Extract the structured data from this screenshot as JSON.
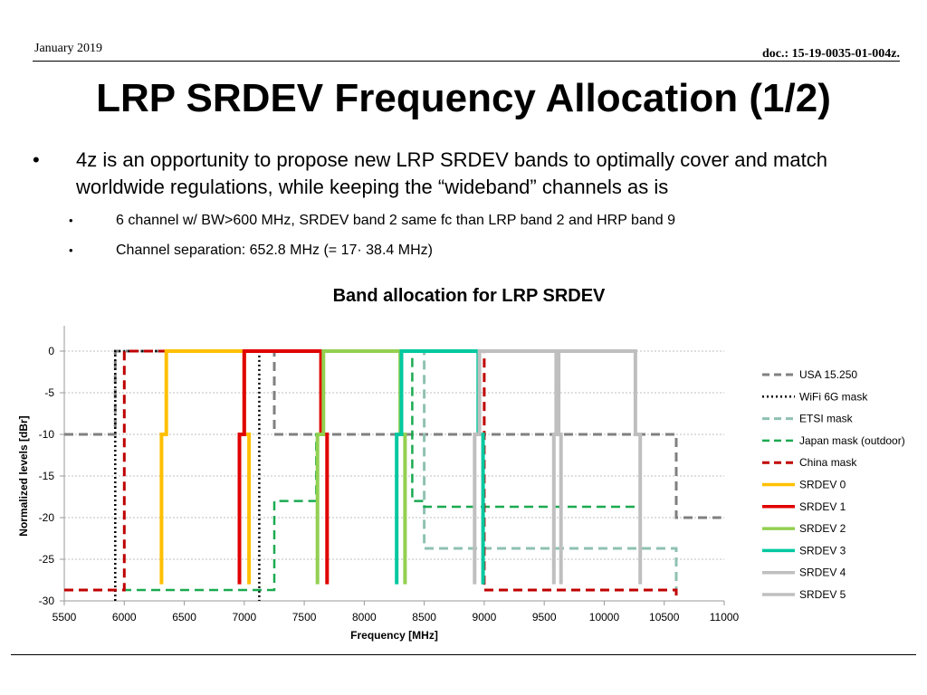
{
  "header": {
    "date": "January 2019",
    "doc_prefix": "doc.: ",
    "doc_number": "15-19-0035-01-004z",
    "doc_suffix": "."
  },
  "slide": {
    "title": "LRP SRDEV Frequency Allocation (1/2)",
    "bullet": "4z is an opportunity to propose new LRP SRDEV bands to optimally cover and match worldwide regulations, while keeping the “wideband” channels as is",
    "bullet_marker": "•",
    "sub_bullets": [
      "6 channel w/ BW>600 MHz, SRDEV band 2 same fc than LRP band 2 and HRP band 9",
      "Channel separation: 652.8 MHz (= 17· 38.4 MHz)"
    ]
  },
  "chart_data": {
    "type": "line",
    "title": "Band allocation for LRP SRDEV",
    "xlabel": "Frequency [MHz]",
    "ylabel": "Normalized levels [dBr]",
    "xlim": [
      5500,
      11000
    ],
    "ylim": [
      -30,
      0
    ],
    "xticks": [
      5500,
      6000,
      6500,
      7000,
      7500,
      8000,
      8500,
      9000,
      9500,
      10000,
      10500,
      11000
    ],
    "yticks": [
      0,
      -5,
      -10,
      -15,
      -20,
      -25,
      -30
    ],
    "grid": "horizontal dotted",
    "legend_position": "right",
    "series": [
      {
        "name": "USA 15.250",
        "color": "#808080",
        "style": "dashed",
        "width": 3,
        "points": [
          [
            5500,
            -10
          ],
          [
            5925,
            -10
          ],
          [
            5925,
            0
          ],
          [
            7250,
            0
          ],
          [
            7250,
            -10
          ],
          [
            10600,
            -10
          ],
          [
            10600,
            -20
          ],
          [
            10975,
            -20
          ]
        ]
      },
      {
        "name": "WiFi 6G mask",
        "color": "#000000",
        "style": "dotted",
        "width": 2.5,
        "points": [
          [
            5925,
            -30
          ],
          [
            5925,
            0
          ],
          [
            7125,
            0
          ],
          [
            7125,
            -30
          ]
        ]
      },
      {
        "name": "ETSI mask",
        "color": "#8fc1b3",
        "style": "dashed",
        "width": 3,
        "points": [
          [
            7250,
            0
          ],
          [
            8500,
            0
          ],
          [
            8500,
            -23.7
          ],
          [
            10600,
            -23.7
          ],
          [
            10600,
            -29
          ]
        ]
      },
      {
        "name": "Japan mask (outdoor)",
        "color": "#1aaa50",
        "style": "dashed",
        "width": 2.5,
        "points": [
          [
            5500,
            -28.7
          ],
          [
            7250,
            -28.7
          ],
          [
            7250,
            -18
          ],
          [
            7600,
            -18
          ],
          [
            7600,
            -10
          ],
          [
            7650,
            -10
          ],
          [
            7650,
            0
          ],
          [
            8400,
            0
          ],
          [
            8400,
            -18
          ],
          [
            8500,
            -18
          ],
          [
            8500,
            -18.7
          ],
          [
            10300,
            -18.7
          ]
        ]
      },
      {
        "name": "China mask",
        "color": "#c00000",
        "style": "dashed",
        "width": 3,
        "points": [
          [
            5500,
            -28.7
          ],
          [
            6000,
            -28.7
          ],
          [
            6000,
            0
          ],
          [
            9000,
            0
          ],
          [
            9000,
            -28.7
          ],
          [
            10600,
            -28.7
          ],
          [
            10600,
            -30
          ]
        ]
      },
      {
        "name": "SRDEV 0",
        "color": "#ffc000",
        "style": "solid",
        "width": 4,
        "points": [
          [
            6310,
            -28
          ],
          [
            6310,
            -10
          ],
          [
            6350,
            -10
          ],
          [
            6350,
            0
          ],
          [
            7000,
            0
          ],
          [
            7000,
            -10
          ],
          [
            7040,
            -10
          ],
          [
            7040,
            -28
          ]
        ]
      },
      {
        "name": "SRDEV 1",
        "color": "#e00000",
        "style": "solid",
        "width": 4,
        "points": [
          [
            6960,
            -28
          ],
          [
            6960,
            -10
          ],
          [
            7000,
            -10
          ],
          [
            7000,
            0
          ],
          [
            7640,
            0
          ],
          [
            7640,
            -10
          ],
          [
            7690,
            -10
          ],
          [
            7690,
            -28
          ]
        ]
      },
      {
        "name": "SRDEV 2",
        "color": "#92d050",
        "style": "solid",
        "width": 4,
        "points": [
          [
            7610,
            -28
          ],
          [
            7610,
            -10
          ],
          [
            7660,
            -10
          ],
          [
            7660,
            0
          ],
          [
            8300,
            0
          ],
          [
            8300,
            -10
          ],
          [
            8340,
            -10
          ],
          [
            8340,
            -28
          ]
        ]
      },
      {
        "name": "SRDEV 3",
        "color": "#00c8a0",
        "style": "solid",
        "width": 4,
        "points": [
          [
            8270,
            -28
          ],
          [
            8270,
            -10
          ],
          [
            8310,
            -10
          ],
          [
            8310,
            0
          ],
          [
            8950,
            0
          ],
          [
            8950,
            -10
          ],
          [
            8990,
            -10
          ],
          [
            8990,
            -28
          ]
        ]
      },
      {
        "name": "SRDEV 4",
        "color": "#bfbfbf",
        "style": "solid",
        "width": 4,
        "points": [
          [
            8920,
            -28
          ],
          [
            8920,
            -10
          ],
          [
            8960,
            -10
          ],
          [
            8960,
            0
          ],
          [
            9600,
            0
          ],
          [
            9600,
            -10
          ],
          [
            9640,
            -10
          ],
          [
            9640,
            -28
          ]
        ]
      },
      {
        "name": "SRDEV 5",
        "color": "#bfbfbf",
        "style": "solid",
        "width": 4,
        "points": [
          [
            9580,
            -28
          ],
          [
            9580,
            -10
          ],
          [
            9620,
            -10
          ],
          [
            9620,
            0
          ],
          [
            10260,
            0
          ],
          [
            10260,
            -10
          ],
          [
            10300,
            -10
          ],
          [
            10300,
            -28
          ]
        ]
      }
    ]
  }
}
